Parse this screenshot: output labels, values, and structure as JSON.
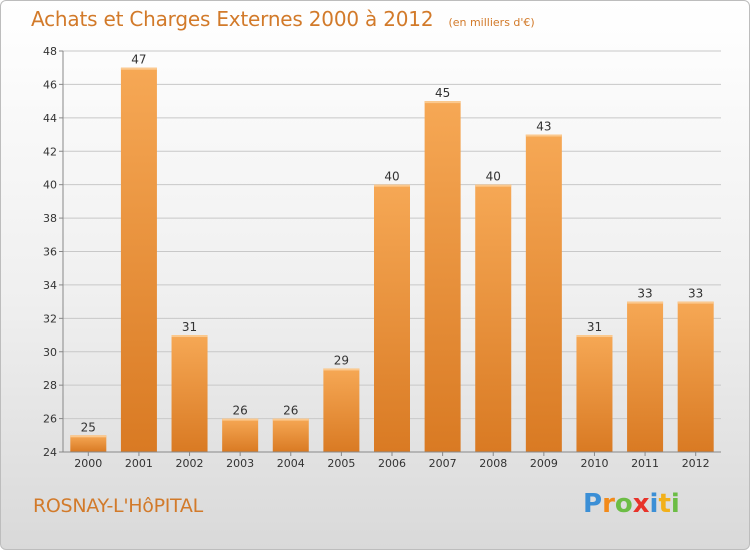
{
  "title": "Achats et Charges Externes 2000 à 2012",
  "subtitle": "(en milliers d'€)",
  "commune": "ROSNAY-L'HôPITAL",
  "logo": {
    "letters": [
      "P",
      "r",
      "o",
      "x",
      "i",
      "t",
      "i"
    ],
    "colors": [
      "#3b8fd6",
      "#f28a1a",
      "#6cbd45",
      "#e8332a",
      "#3b8fd6",
      "#f2b01a",
      "#6cbd45"
    ]
  },
  "colors": {
    "bar_top": "#f6a855",
    "bar_bottom": "#d97a23",
    "text": "#d27a2a",
    "axis_text": "#333333",
    "grid": "#c8c8c8"
  },
  "chart_data": {
    "type": "bar",
    "categories": [
      "2000",
      "2001",
      "2002",
      "2003",
      "2004",
      "2005",
      "2006",
      "2007",
      "2008",
      "2009",
      "2010",
      "2011",
      "2012"
    ],
    "values": [
      25,
      47,
      31,
      26,
      26,
      29,
      40,
      45,
      40,
      43,
      31,
      33,
      33
    ],
    "ylim": [
      24,
      48
    ],
    "yticks": [
      24,
      26,
      28,
      30,
      32,
      34,
      36,
      38,
      40,
      42,
      44,
      46,
      48
    ],
    "grid": true,
    "data_labels": true
  }
}
